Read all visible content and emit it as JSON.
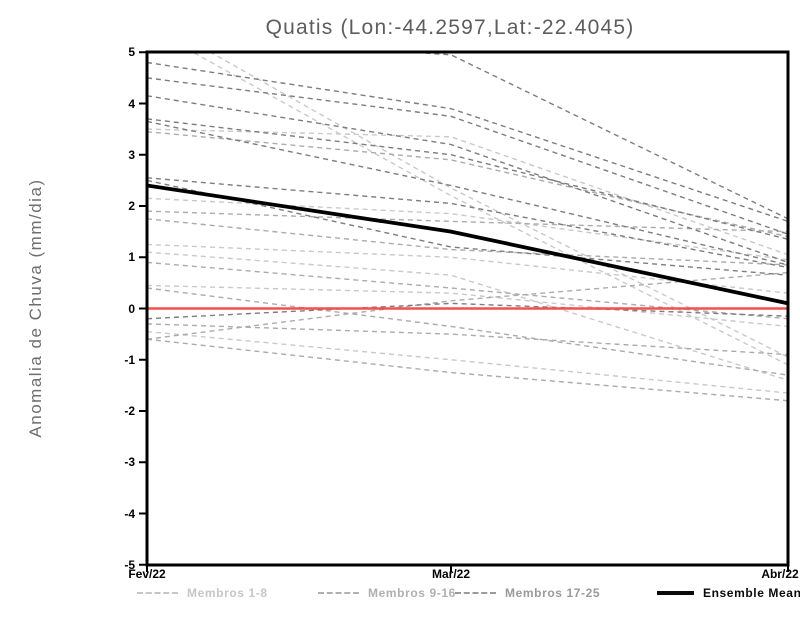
{
  "chart_data": {
    "type": "line",
    "title": "Quatis (Lon:-44.2597,Lat:-22.4045)",
    "ylabel": "Anomalia de Chuva (mm/dia)",
    "xlabel": "",
    "categories": [
      "Fev/22",
      "Mar/22",
      "Abr/22"
    ],
    "ylim": [
      -5,
      5
    ],
    "yticks": [
      5,
      4,
      3,
      2,
      1,
      0,
      -1,
      -2,
      -3,
      -4,
      -5
    ],
    "grid": "off",
    "legend_position": "bottom",
    "zero_line": {
      "value": 0,
      "color": "#f25050"
    },
    "frame_color": "#000000",
    "series_groups": [
      {
        "name": "Membros 1-8",
        "color": "#c9c9c9",
        "style": "dashed",
        "members": [
          [
            5.7,
            2.35,
            -0.95
          ],
          [
            5.5,
            2.2,
            -1.1
          ],
          [
            3.5,
            3.35,
            1.05
          ],
          [
            2.15,
            1.85,
            0.95
          ],
          [
            1.25,
            1.0,
            0.3
          ],
          [
            1.1,
            0.65,
            -1.4
          ],
          [
            0.45,
            0.3,
            -0.35
          ],
          [
            -0.45,
            -1.0,
            -1.65
          ]
        ]
      },
      {
        "name": "Membros 9-16",
        "color": "#ababab",
        "style": "dashed",
        "members": [
          [
            3.45,
            2.9,
            1.4
          ],
          [
            1.9,
            1.7,
            1.5
          ],
          [
            1.75,
            1.15,
            0.85
          ],
          [
            0.9,
            0.4,
            -0.2
          ],
          [
            0.4,
            -0.35,
            -1.3
          ],
          [
            -0.3,
            -0.5,
            -0.9
          ],
          [
            -0.6,
            -1.25,
            -1.8
          ],
          [
            -0.6,
            0.15,
            0.7
          ]
        ]
      },
      {
        "name": "Membros 17-25",
        "color": "#7d7d7d",
        "style": "dashed",
        "members": [
          [
            5.35,
            4.95,
            1.75
          ],
          [
            4.8,
            3.9,
            1.7
          ],
          [
            4.5,
            3.75,
            1.45
          ],
          [
            4.15,
            3.2,
            0.9
          ],
          [
            3.7,
            3.0,
            1.35
          ],
          [
            3.65,
            2.4,
            0.85
          ],
          [
            2.55,
            2.05,
            0.8
          ],
          [
            2.5,
            1.2,
            0.65
          ],
          [
            -0.2,
            0.1,
            -0.15
          ]
        ]
      }
    ],
    "ensemble_mean": {
      "name": "Ensemble Mean",
      "color": "#000000",
      "style": "solid",
      "values": [
        2.4,
        1.5,
        0.1
      ]
    },
    "legend": [
      {
        "label": "Membros 1-8",
        "swatch": "dashed",
        "color": "#c6c6c6"
      },
      {
        "label": "Membros 9-16",
        "swatch": "dashed",
        "color": "#b0b0b0"
      },
      {
        "label": "Membros 17-25",
        "swatch": "dashed",
        "color": "#9a9a9a"
      },
      {
        "label": "Ensemble Mean",
        "swatch": "solid",
        "color": "#0a0a0a"
      }
    ]
  }
}
